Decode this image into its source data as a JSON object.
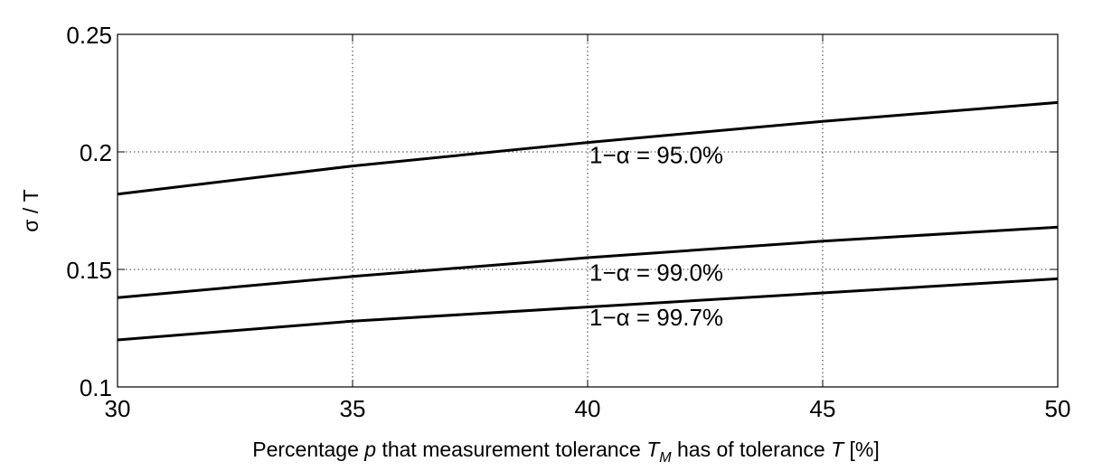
{
  "chart_data": {
    "type": "line",
    "xlabel": "Percentage p that measurement tolerance T_M has of tolerance T [%]",
    "xlabel_parts": {
      "before_p": "Percentage ",
      "p": "p",
      "middle": " that measurement tolerance ",
      "tm": "T",
      "tm_sub": "M",
      "between": " has of tolerance ",
      "t": "T",
      "after": " [%]"
    },
    "ylabel": "σ / T",
    "xlim": [
      30,
      50
    ],
    "ylim": [
      0.1,
      0.25
    ],
    "x_ticks": [
      30,
      35,
      40,
      45,
      50
    ],
    "x_tick_labels": [
      "30",
      "35",
      "40",
      "45",
      "50"
    ],
    "y_ticks": [
      0.1,
      0.15,
      0.2,
      0.25
    ],
    "y_tick_labels": [
      "0.1",
      "0.15",
      "0.2",
      "0.25"
    ],
    "grid": "dotted",
    "series": [
      {
        "name": "1−α = 95.0%",
        "x": [
          30,
          35,
          40,
          45,
          50
        ],
        "y": [
          0.182,
          0.194,
          0.204,
          0.213,
          0.221
        ],
        "label_at": [
          40,
          0.199
        ]
      },
      {
        "name": "1−α = 99.0%",
        "x": [
          30,
          35,
          40,
          45,
          50
        ],
        "y": [
          0.138,
          0.147,
          0.155,
          0.162,
          0.168
        ],
        "label_at": [
          40,
          0.149
        ]
      },
      {
        "name": "1−α = 99.7%",
        "x": [
          30,
          35,
          40,
          45,
          50
        ],
        "y": [
          0.12,
          0.128,
          0.134,
          0.14,
          0.146
        ],
        "label_at": [
          40,
          0.13
        ]
      }
    ]
  }
}
